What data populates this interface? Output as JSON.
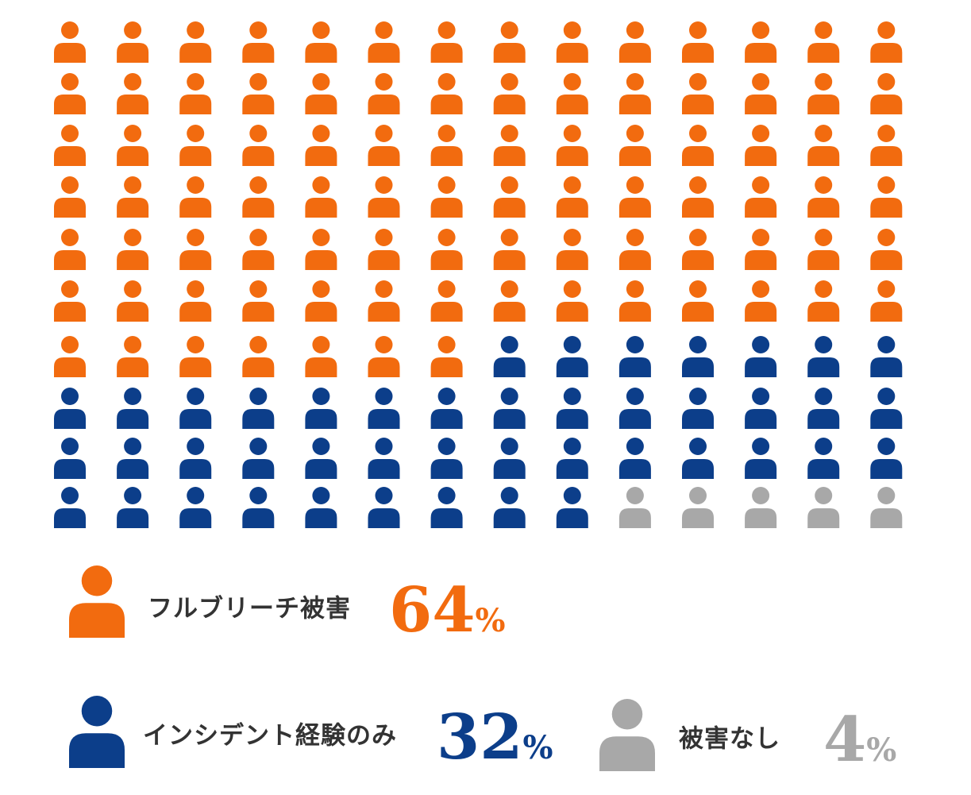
{
  "chart_data": {
    "type": "pictogram",
    "series": [
      {
        "name": "フルブリーチ被害",
        "color": "#f26b0f",
        "values": [
          64
        ],
        "value_labels": [
          "64%"
        ],
        "icon_count": 91
      },
      {
        "name": "インシデント経験のみ",
        "color": "#0c3e8a",
        "values": [
          32
        ],
        "value_labels": [
          "32%"
        ],
        "icon_count": 44
      },
      {
        "name": "被害なし",
        "color": "#a8a8a8",
        "values": [
          4
        ],
        "value_labels": [
          "4%"
        ],
        "icon_count": 5
      }
    ]
  }
}
